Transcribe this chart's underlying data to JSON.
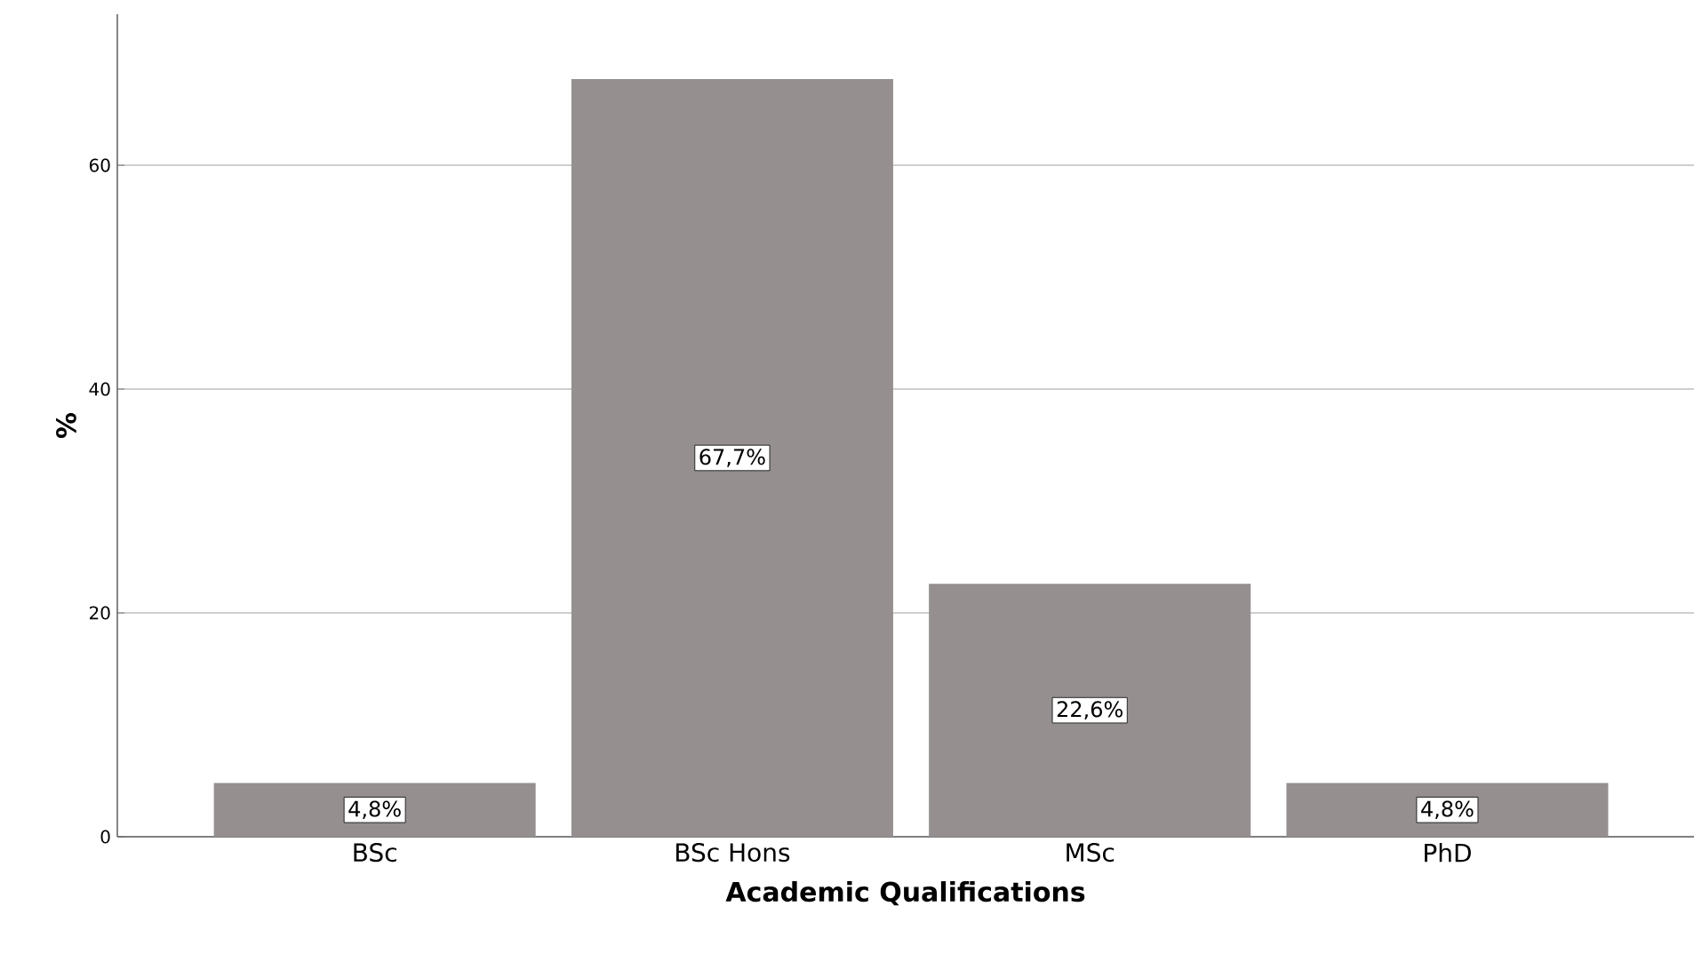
{
  "chart_data": {
    "type": "bar",
    "xlabel": "Academic Qualifications",
    "ylabel": "%",
    "categories": [
      "BSc",
      "BSc Hons",
      "MSc",
      "PhD"
    ],
    "values": [
      4.8,
      67.7,
      22.6,
      4.8
    ],
    "value_labels": [
      "4,8%",
      "67,7%",
      "22,6%",
      "4,8%"
    ],
    "color": "#958f8f",
    "ylim": [
      0,
      73.5
    ],
    "yticks": [
      0,
      20,
      40,
      60
    ],
    "grid": "y"
  }
}
